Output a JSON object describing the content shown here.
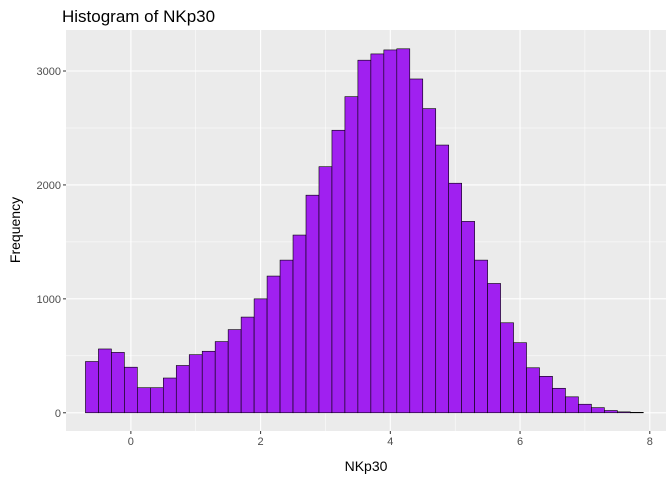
{
  "chart_data": {
    "type": "bar",
    "title": "Histogram of NKp30",
    "xlabel": "NKp30",
    "ylabel": "Frequency",
    "xlim": [
      -1.0,
      8.25
    ],
    "ylim": [
      -160,
      3360
    ],
    "x_ticks": [
      0,
      2,
      4,
      6,
      8
    ],
    "y_ticks": [
      0,
      1000,
      2000,
      3000
    ],
    "bin_width": 0.2,
    "bins": [
      {
        "x": -0.6,
        "count": 450
      },
      {
        "x": -0.4,
        "count": 560
      },
      {
        "x": -0.2,
        "count": 530
      },
      {
        "x": 0.0,
        "count": 400
      },
      {
        "x": 0.2,
        "count": 220
      },
      {
        "x": 0.4,
        "count": 220
      },
      {
        "x": 0.6,
        "count": 305
      },
      {
        "x": 0.8,
        "count": 415
      },
      {
        "x": 1.0,
        "count": 510
      },
      {
        "x": 1.2,
        "count": 540
      },
      {
        "x": 1.4,
        "count": 625
      },
      {
        "x": 1.6,
        "count": 730
      },
      {
        "x": 1.8,
        "count": 840
      },
      {
        "x": 2.0,
        "count": 1000
      },
      {
        "x": 2.2,
        "count": 1200
      },
      {
        "x": 2.4,
        "count": 1340
      },
      {
        "x": 2.6,
        "count": 1560
      },
      {
        "x": 2.8,
        "count": 1910
      },
      {
        "x": 3.0,
        "count": 2160
      },
      {
        "x": 3.2,
        "count": 2480
      },
      {
        "x": 3.4,
        "count": 2775
      },
      {
        "x": 3.6,
        "count": 3095
      },
      {
        "x": 3.8,
        "count": 3150
      },
      {
        "x": 4.0,
        "count": 3185
      },
      {
        "x": 4.2,
        "count": 3195
      },
      {
        "x": 4.4,
        "count": 2930
      },
      {
        "x": 4.6,
        "count": 2670
      },
      {
        "x": 4.8,
        "count": 2350
      },
      {
        "x": 5.0,
        "count": 2015
      },
      {
        "x": 5.2,
        "count": 1680
      },
      {
        "x": 5.4,
        "count": 1340
      },
      {
        "x": 5.6,
        "count": 1135
      },
      {
        "x": 5.8,
        "count": 790
      },
      {
        "x": 6.0,
        "count": 615
      },
      {
        "x": 6.2,
        "count": 395
      },
      {
        "x": 6.4,
        "count": 320
      },
      {
        "x": 6.6,
        "count": 215
      },
      {
        "x": 6.8,
        "count": 140
      },
      {
        "x": 7.0,
        "count": 75
      },
      {
        "x": 7.2,
        "count": 45
      },
      {
        "x": 7.4,
        "count": 20
      },
      {
        "x": 7.6,
        "count": 8
      },
      {
        "x": 7.8,
        "count": 4
      }
    ],
    "grid": true,
    "colors": {
      "panel": "#ebebeb",
      "grid_major": "#ffffff",
      "bar_fill": "#a020f0",
      "bar_stroke": "#000000",
      "tick_text": "#4d4d4d"
    }
  }
}
